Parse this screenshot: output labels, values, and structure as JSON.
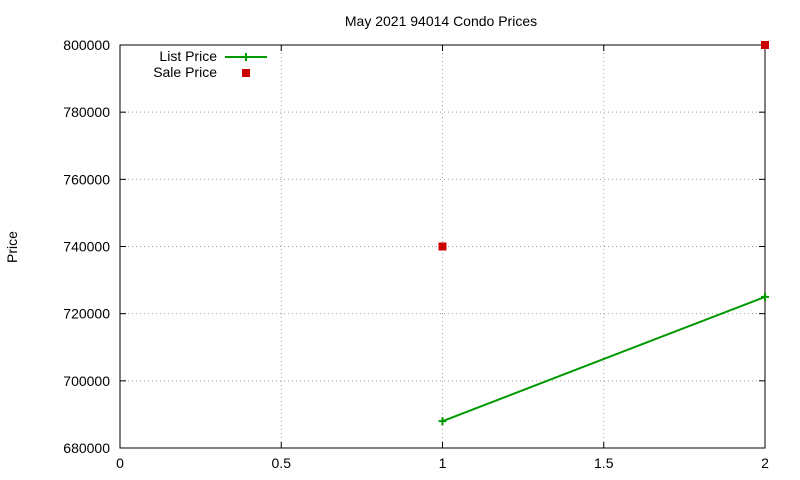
{
  "chart_data": {
    "type": "scatter",
    "title": "May 2021 94014 Condo Prices",
    "xlabel": "",
    "ylabel": "Price",
    "xlim": [
      0,
      2
    ],
    "ylim": [
      680000,
      800000
    ],
    "x_ticks": [
      "0",
      "0.5",
      "1",
      "1.5",
      "2"
    ],
    "y_ticks": [
      "680000",
      "700000",
      "720000",
      "740000",
      "760000",
      "780000",
      "800000"
    ],
    "grid": true,
    "legend_position": "top-left",
    "series": [
      {
        "name": "List Price",
        "style": "linespoints",
        "color": "#009900",
        "x": [
          1,
          2
        ],
        "y": [
          688000,
          725000
        ]
      },
      {
        "name": "Sale Price",
        "style": "points",
        "color": "#cc0000",
        "x": [
          1,
          2
        ],
        "y": [
          740000,
          800000
        ]
      }
    ]
  }
}
